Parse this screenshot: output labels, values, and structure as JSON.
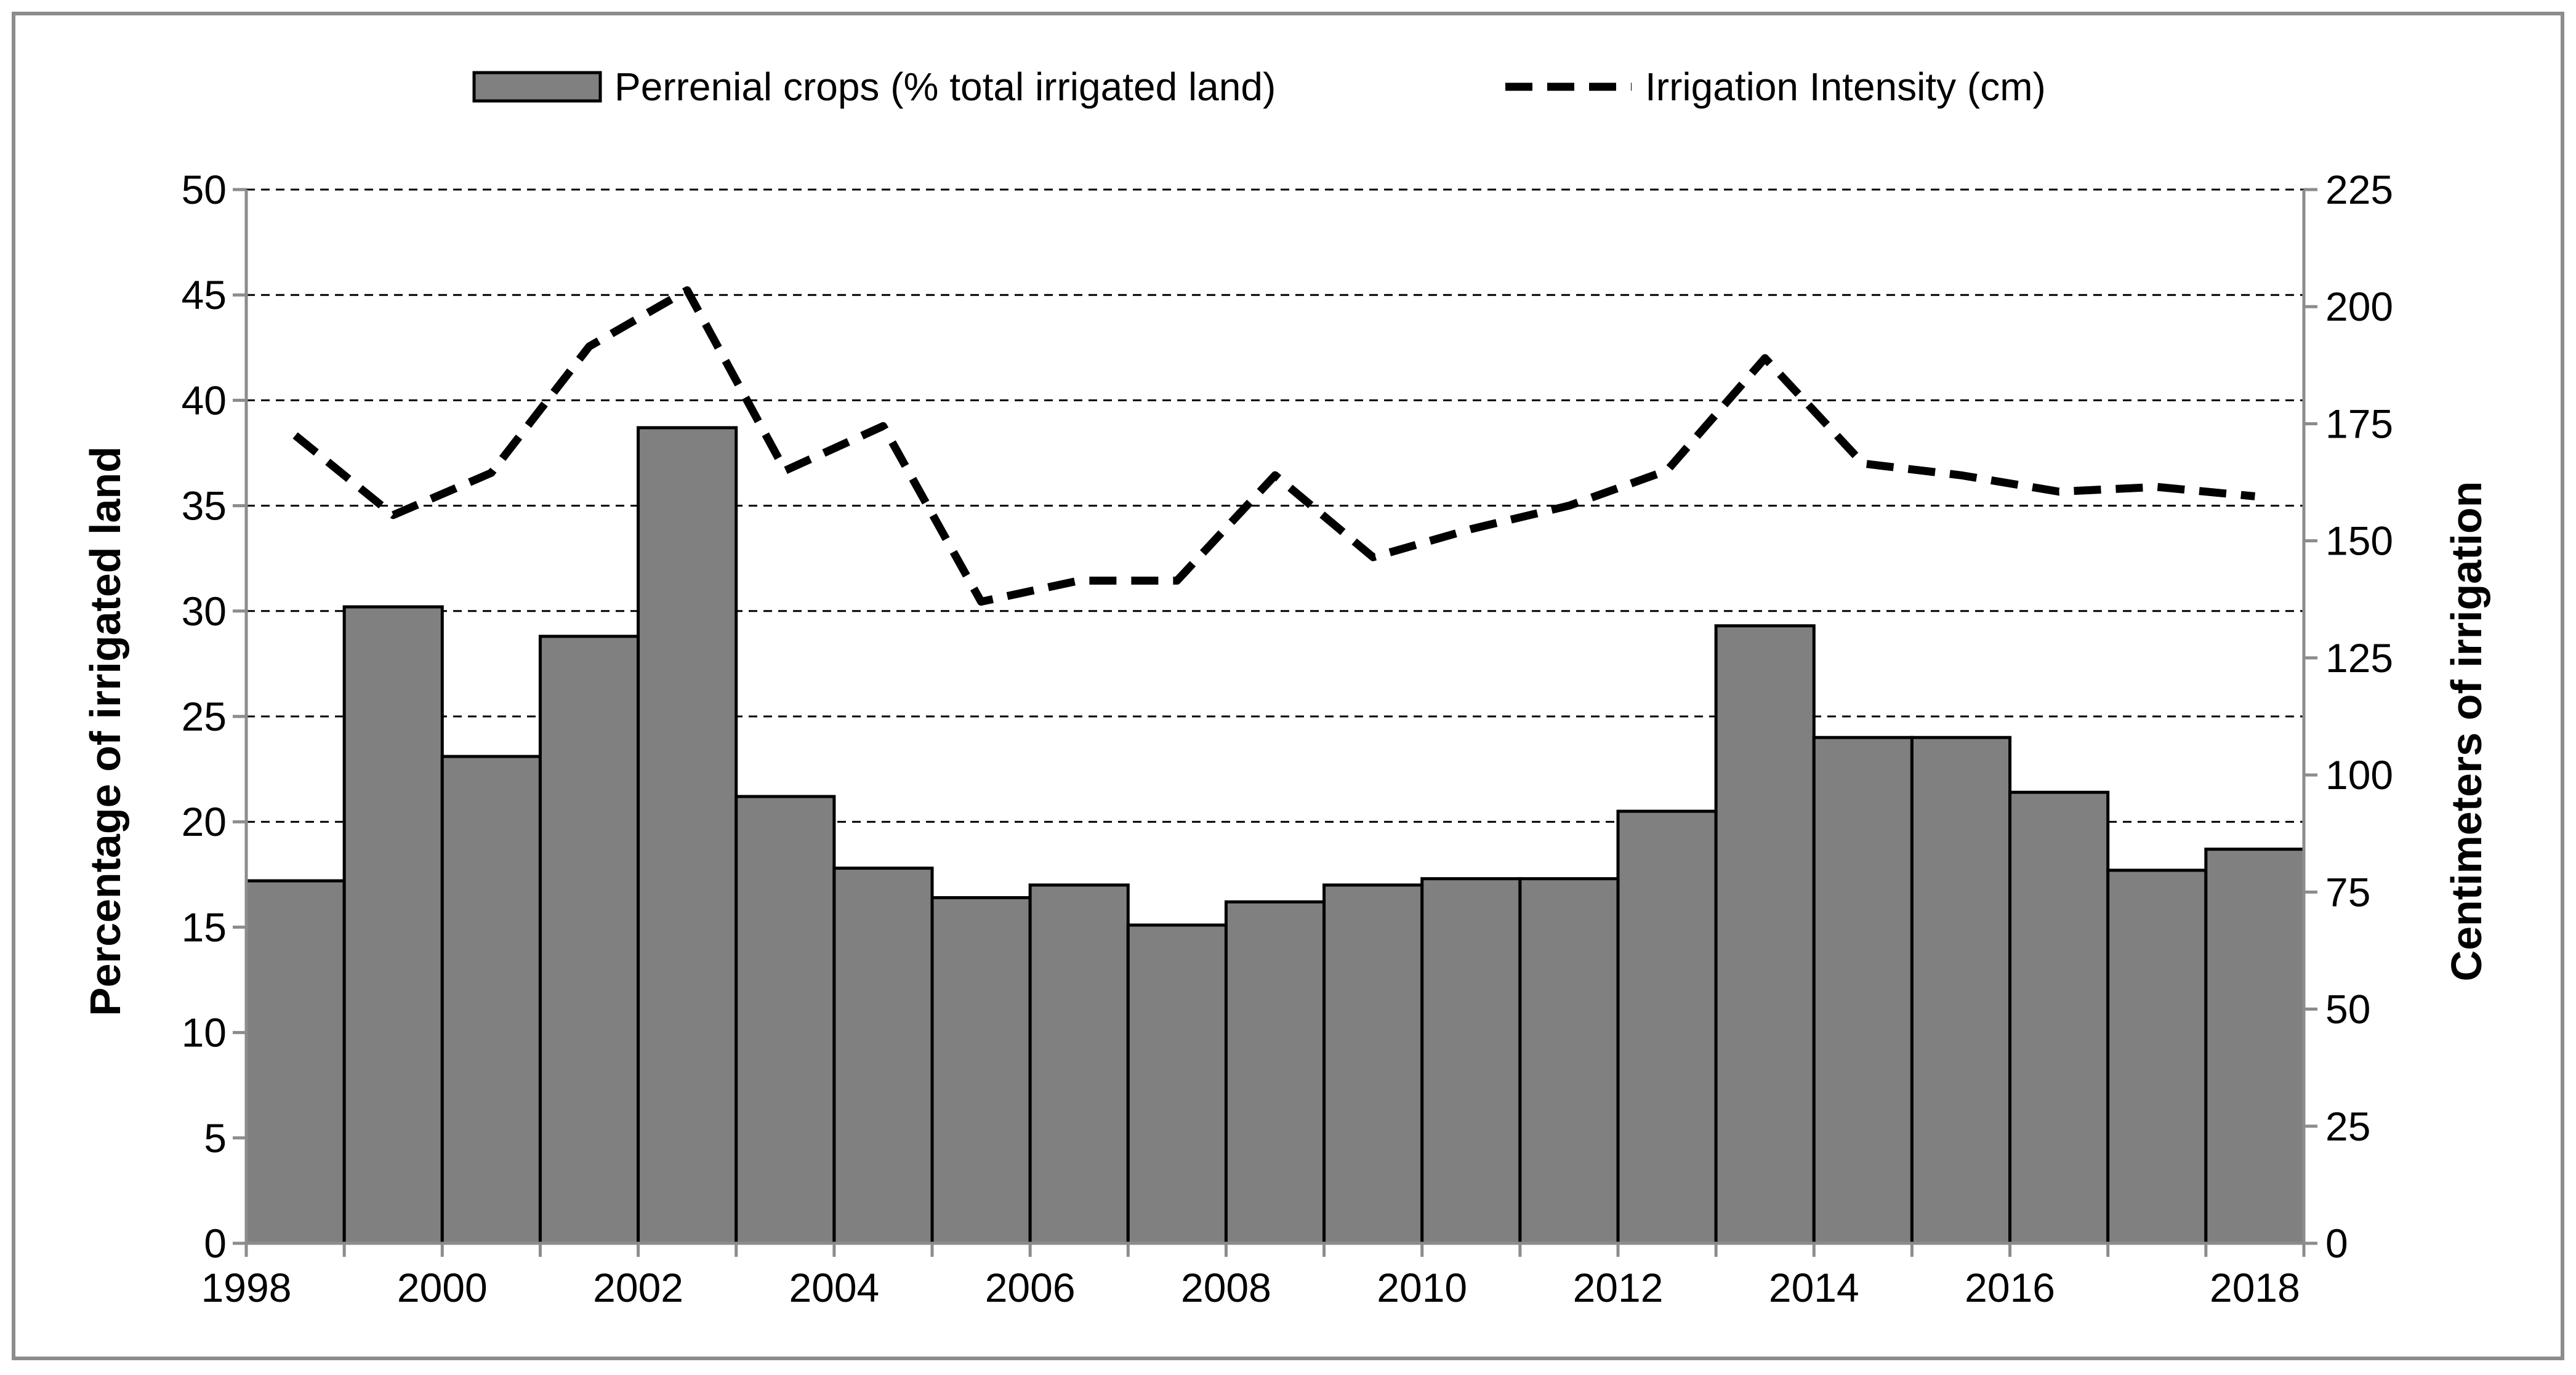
{
  "chart_data": {
    "type": "bar+line",
    "title": "",
    "legend": {
      "placement": "top",
      "entries": [
        {
          "label": "Perrenial crops (% total irrigated land)",
          "kind": "bar"
        },
        {
          "label": "Irrigation Intensity (cm)",
          "kind": "dashed-line"
        }
      ]
    },
    "years": [
      1998,
      1999,
      2000,
      2001,
      2002,
      2003,
      2004,
      2005,
      2006,
      2007,
      2008,
      2009,
      2010,
      2011,
      2012,
      2013,
      2014,
      2015,
      2016,
      2017,
      2018
    ],
    "x_tick_labels": [
      "1998",
      "2000",
      "2002",
      "2004",
      "2006",
      "2008",
      "2010",
      "2012",
      "2014",
      "2016",
      "2018"
    ],
    "series": [
      {
        "name": "Perrenial crops (% total irrigated land)",
        "axis": "left",
        "type": "bar",
        "values": [
          17.2,
          30.2,
          23.1,
          28.8,
          38.7,
          21.2,
          17.8,
          16.4,
          17.0,
          15.1,
          16.2,
          17.0,
          17.3,
          17.3,
          20.5,
          29.3,
          24.0,
          24.0,
          21.4,
          17.7,
          18.7
        ]
      },
      {
        "name": "Irrigation Intensity (cm)",
        "axis": "right",
        "type": "line",
        "values": [
          172.5,
          155.5,
          164.5,
          191.5,
          203.5,
          165.0,
          174.5,
          137.0,
          141.5,
          141.5,
          164.0,
          146.5,
          152.5,
          157.5,
          165.0,
          189.0,
          166.5,
          164.0,
          160.5,
          161.5,
          159.5
        ]
      }
    ],
    "y_left": {
      "label": "Percentage of irrigated land",
      "lim": [
        0,
        50
      ],
      "ticks": [
        "0",
        "5",
        "10",
        "15",
        "20",
        "25",
        "30",
        "35",
        "40",
        "45",
        "50"
      ]
    },
    "y_right": {
      "label": "Centimeters of irrigation",
      "lim": [
        0,
        225
      ],
      "ticks": [
        "0",
        "25",
        "50",
        "75",
        "100",
        "125",
        "150",
        "175",
        "200",
        "225"
      ]
    },
    "gridlines": "dashed horizontal",
    "colors": {
      "bar_fill": "#808080",
      "bar_stroke": "#000000",
      "line": "#000000",
      "grid": "#000000",
      "frame": "#8c8c8c"
    }
  }
}
